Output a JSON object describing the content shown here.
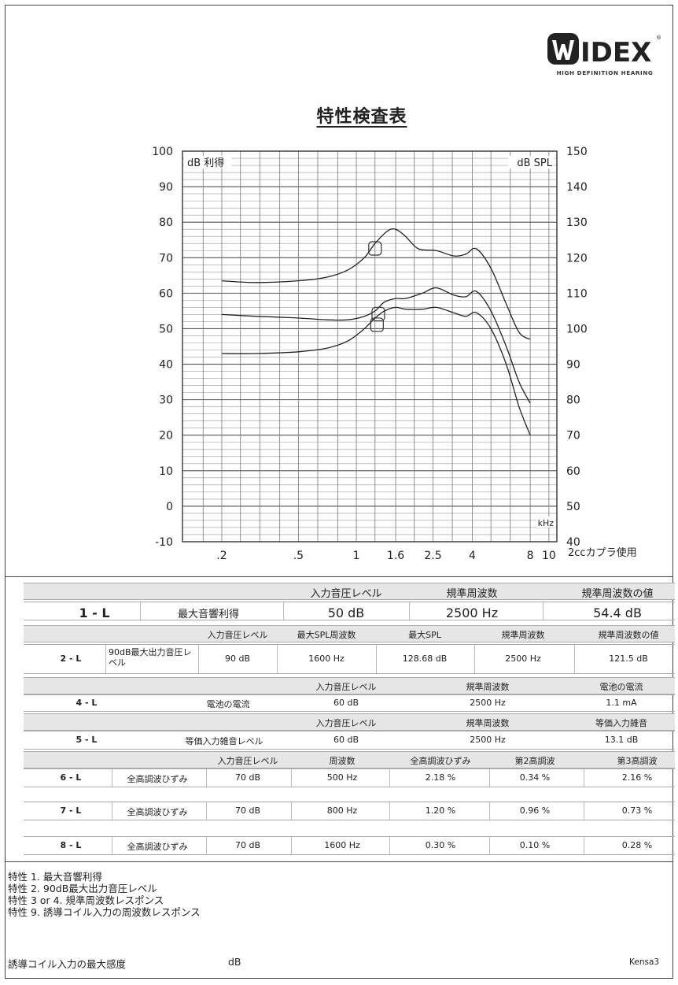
{
  "brand": {
    "name": "WIDEX",
    "tagline": "HIGH DEFINITION HEARING"
  },
  "title": "特性検査表",
  "chart_data": {
    "type": "line",
    "xaxis": {
      "scale": "log",
      "ticks": [
        ".2",
        ".5",
        "1",
        "1.6",
        "2.5",
        "4",
        "8",
        "10"
      ],
      "tick_values": [
        0.2,
        0.5,
        1,
        1.6,
        2.5,
        4,
        8,
        10
      ],
      "unit": "kHz",
      "range": [
        0.125,
        11
      ]
    },
    "ylabel_left": "dB 利得",
    "ylabel_right": "dB SPL",
    "ylim_left": [
      -10,
      100
    ],
    "yticks_left": [
      "100",
      "90",
      "80",
      "70",
      "60",
      "50",
      "40",
      "30",
      "20",
      "10",
      "0",
      "-10"
    ],
    "yticks_right": [
      "150",
      "140",
      "130",
      "120",
      "110",
      "100",
      "90",
      "80",
      "70",
      "60",
      "50",
      "40"
    ],
    "note": "2ccカプラ使用",
    "series": [
      {
        "x": [
          0.2,
          0.3,
          0.5,
          0.7,
          0.9,
          1.1,
          1.25,
          1.45,
          1.6,
          1.8,
          2.1,
          2.6,
          3.2,
          3.7,
          4.2,
          5,
          6,
          7,
          8
        ],
        "y": [
          63.5,
          63,
          63.5,
          64.5,
          66.5,
          70,
          74,
          77.5,
          78,
          76,
          72.5,
          72,
          70.5,
          71,
          72.5,
          67,
          57,
          49,
          47
        ]
      },
      {
        "x": [
          0.2,
          0.3,
          0.5,
          0.7,
          0.9,
          1.1,
          1.25,
          1.4,
          1.6,
          1.8,
          2.2,
          2.6,
          3.2,
          3.7,
          4.2,
          5,
          6,
          7,
          8
        ],
        "y": [
          54,
          53.5,
          53,
          52.5,
          52.5,
          53.5,
          55,
          57.5,
          58.5,
          58.5,
          60,
          61.5,
          59.5,
          59,
          60.5,
          55,
          45,
          35,
          29
        ]
      },
      {
        "x": [
          0.2,
          0.3,
          0.5,
          0.7,
          0.9,
          1.1,
          1.25,
          1.4,
          1.6,
          1.8,
          2.2,
          2.6,
          3.2,
          3.7,
          4.2,
          5,
          6,
          7,
          8
        ],
        "y": [
          43,
          43,
          43.5,
          44.5,
          46.5,
          50,
          53,
          55,
          56,
          55.5,
          55.5,
          56,
          54.5,
          53.5,
          54.5,
          50,
          40,
          28,
          20
        ]
      }
    ],
    "markers": [
      {
        "x": 1.25,
        "y": 72.5
      },
      {
        "x": 1.3,
        "y": 54
      },
      {
        "x": 1.28,
        "y": 51
      }
    ]
  },
  "tables": {
    "t1": {
      "headers": [
        "入力音圧レベル",
        "規準周波数",
        "規準周波数の値"
      ],
      "row": [
        "1 - L",
        "最大音響利得",
        "50 dB",
        "2500 Hz",
        "54.4 dB"
      ]
    },
    "t2": {
      "headers": [
        "入力音圧レベル",
        "最大SPL周波数",
        "最大SPL",
        "規準周波数",
        "規準周波数の値"
      ],
      "row": [
        "2 - L",
        "90dB最大出力音圧レベル",
        "90 dB",
        "1600 Hz",
        "128.68 dB",
        "2500 Hz",
        "121.5 dB"
      ]
    },
    "t4": {
      "headers": [
        "入力音圧レベル",
        "規準周波数",
        "電池の電流"
      ],
      "row": [
        "4 - L",
        "電池の電流",
        "60 dB",
        "2500 Hz",
        "1.1 mA"
      ]
    },
    "t5": {
      "headers": [
        "入力音圧レベル",
        "規準周波数",
        "等価入力雑音"
      ],
      "row": [
        "5 - L",
        "等価入力雑音レベル",
        "60 dB",
        "2500 Hz",
        "13.1 dB"
      ]
    },
    "t6": {
      "headers": [
        "入力音圧レベル",
        "周波数",
        "全高調波ひずみ",
        "第2高調波",
        "第3高調波"
      ],
      "rows": [
        [
          "6 - L",
          "全高調波ひずみ",
          "70 dB",
          "500 Hz",
          "2.18 %",
          "0.34 %",
          "2.16 %"
        ],
        [
          "7 - L",
          "全高調波ひずみ",
          "70 dB",
          "800 Hz",
          "1.20 %",
          "0.96 %",
          "0.73 %"
        ],
        [
          "8 - L",
          "全高調波ひずみ",
          "70 dB",
          "1600 Hz",
          "0.30 %",
          "0.10 %",
          "0.28 %"
        ]
      ]
    }
  },
  "notes": [
    "特性 1. 最大音響利得",
    "特性 2. 90dB最大出力音圧レベル",
    "特性 3 or 4. 規準周波数レスポンス",
    "特性 9. 誘導コイル入力の周波数レスポンス"
  ],
  "footer": {
    "label": "誘導コイル入力の最大感度",
    "unit": "dB",
    "code": "Kensa3"
  }
}
